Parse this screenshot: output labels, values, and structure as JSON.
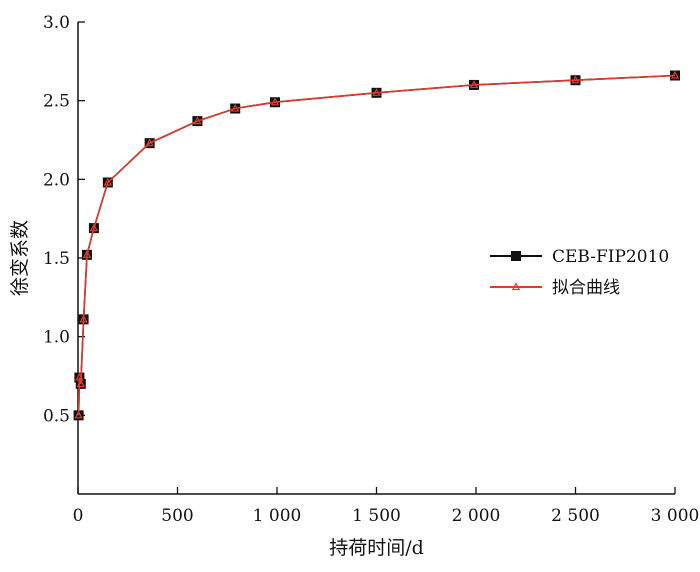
{
  "chart_data": {
    "type": "line",
    "xlabel": "持荷时间/d",
    "ylabel": "徐变系数",
    "xlim": [
      0,
      3000
    ],
    "ylim": [
      0.0,
      3.0
    ],
    "x_ticks": [
      {
        "value": 0,
        "label": "0"
      },
      {
        "value": 500,
        "label": "500"
      },
      {
        "value": 1000,
        "label": "1 000"
      },
      {
        "value": 1500,
        "label": "1 500"
      },
      {
        "value": 2000,
        "label": "2 000"
      },
      {
        "value": 2500,
        "label": "2 500"
      },
      {
        "value": 3000,
        "label": "3 000"
      }
    ],
    "y_ticks": [
      {
        "value": 0.5,
        "label": "0.5"
      },
      {
        "value": 1.0,
        "label": "1.0"
      },
      {
        "value": 1.5,
        "label": "1.5"
      },
      {
        "value": 2.0,
        "label": "2.0"
      },
      {
        "value": 2.5,
        "label": "2.5"
      },
      {
        "value": 3.0,
        "label": "3.0"
      }
    ],
    "legend_position": "right",
    "grid": false,
    "series": [
      {
        "name": "CEB-FIP2010",
        "color": "#111111",
        "marker": "square",
        "x": [
          3,
          7,
          14,
          28,
          45,
          80,
          150,
          360,
          600,
          790,
          990,
          1500,
          1990,
          2500,
          3000
        ],
        "y": [
          0.5,
          0.74,
          0.7,
          1.11,
          1.52,
          1.69,
          1.98,
          2.23,
          2.37,
          2.45,
          2.49,
          2.55,
          2.6,
          2.63,
          2.66
        ]
      },
      {
        "name": "拟合曲线",
        "color": "#e03a2b",
        "marker": "triangle",
        "x": [
          3,
          7,
          14,
          28,
          45,
          80,
          150,
          360,
          600,
          790,
          990,
          1500,
          1990,
          2500,
          3000
        ],
        "y": [
          0.5,
          0.74,
          0.7,
          1.11,
          1.52,
          1.69,
          1.98,
          2.23,
          2.37,
          2.45,
          2.49,
          2.55,
          2.6,
          2.63,
          2.66
        ]
      }
    ]
  }
}
